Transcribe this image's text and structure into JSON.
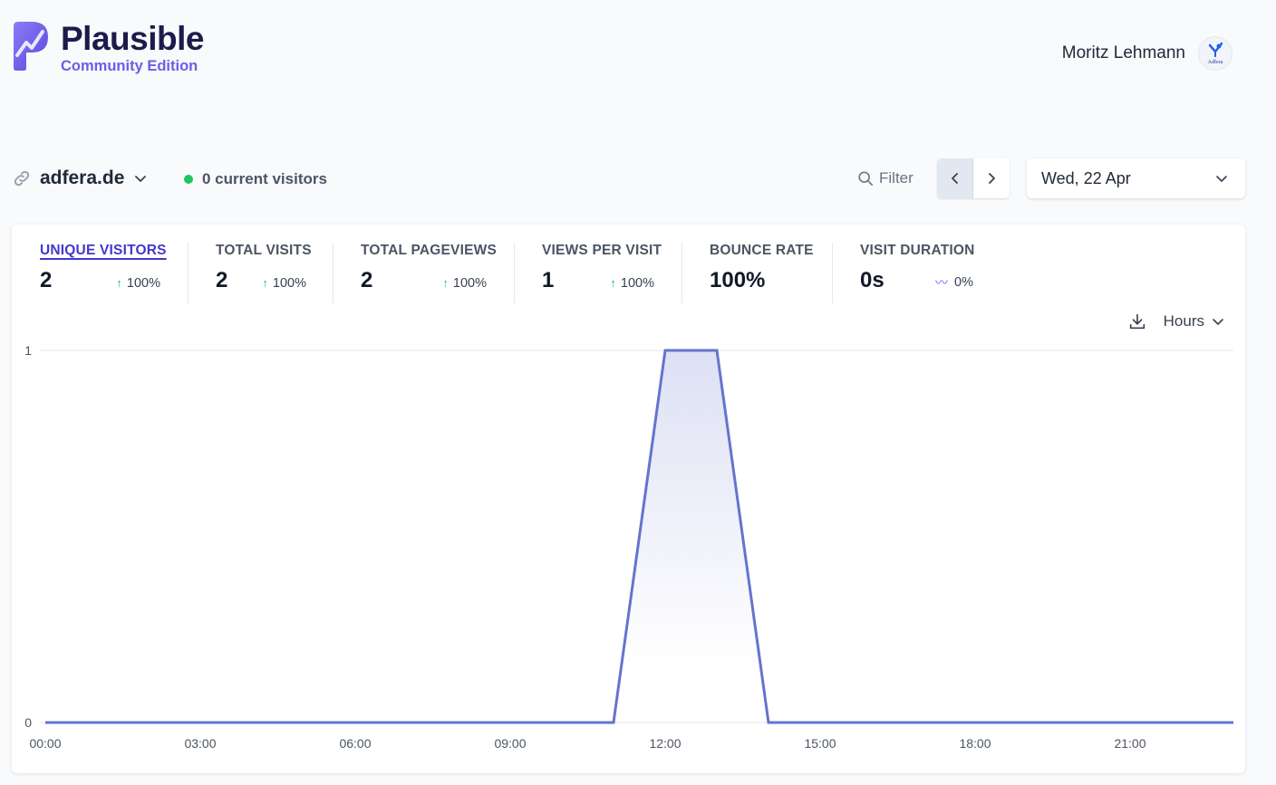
{
  "brand": {
    "name": "Plausible",
    "edition": "Community Edition"
  },
  "user": {
    "name": "Moritz Lehmann",
    "avatar_text": "Adfera"
  },
  "site": {
    "domain": "adfera.de",
    "current_visitors": "0 current visitors"
  },
  "toolbar": {
    "filter_label": "Filter",
    "date_label": "Wed, 22 Apr"
  },
  "metrics": [
    {
      "label": "UNIQUE VISITORS",
      "value": "2",
      "change": "100%",
      "trend": "up"
    },
    {
      "label": "TOTAL VISITS",
      "value": "2",
      "change": "100%",
      "trend": "up"
    },
    {
      "label": "TOTAL PAGEVIEWS",
      "value": "2",
      "change": "100%",
      "trend": "up"
    },
    {
      "label": "VIEWS PER VISIT",
      "value": "1",
      "change": "100%",
      "trend": "up"
    },
    {
      "label": "BOUNCE RATE",
      "value": "100%",
      "change": "",
      "trend": "none"
    },
    {
      "label": "VISIT DURATION",
      "value": "0s",
      "change": "0%",
      "trend": "flat"
    }
  ],
  "chart_controls": {
    "interval_label": "Hours"
  },
  "colors": {
    "accent": "#6d5ce8",
    "line": "#6574cd",
    "live": "#22c55e",
    "up": "#22c55e"
  },
  "chart_data": {
    "type": "area",
    "x": [
      "00:00",
      "01:00",
      "02:00",
      "03:00",
      "04:00",
      "05:00",
      "06:00",
      "07:00",
      "08:00",
      "09:00",
      "10:00",
      "11:00",
      "12:00",
      "13:00",
      "14:00",
      "15:00",
      "16:00",
      "17:00",
      "18:00",
      "19:00",
      "20:00",
      "21:00",
      "22:00",
      "23:00"
    ],
    "series": [
      {
        "values": [
          0,
          0,
          0,
          0,
          0,
          0,
          0,
          0,
          0,
          0,
          0,
          0,
          1,
          1,
          0,
          0,
          0,
          0,
          0,
          0,
          0,
          0,
          0,
          0
        ]
      }
    ],
    "x_tick_labels": [
      "00:00",
      "03:00",
      "06:00",
      "09:00",
      "12:00",
      "15:00",
      "18:00",
      "21:00"
    ],
    "y_tick_labels": [
      "0",
      "1"
    ],
    "ylim": [
      0,
      1
    ],
    "grid": true,
    "legend": "none"
  }
}
